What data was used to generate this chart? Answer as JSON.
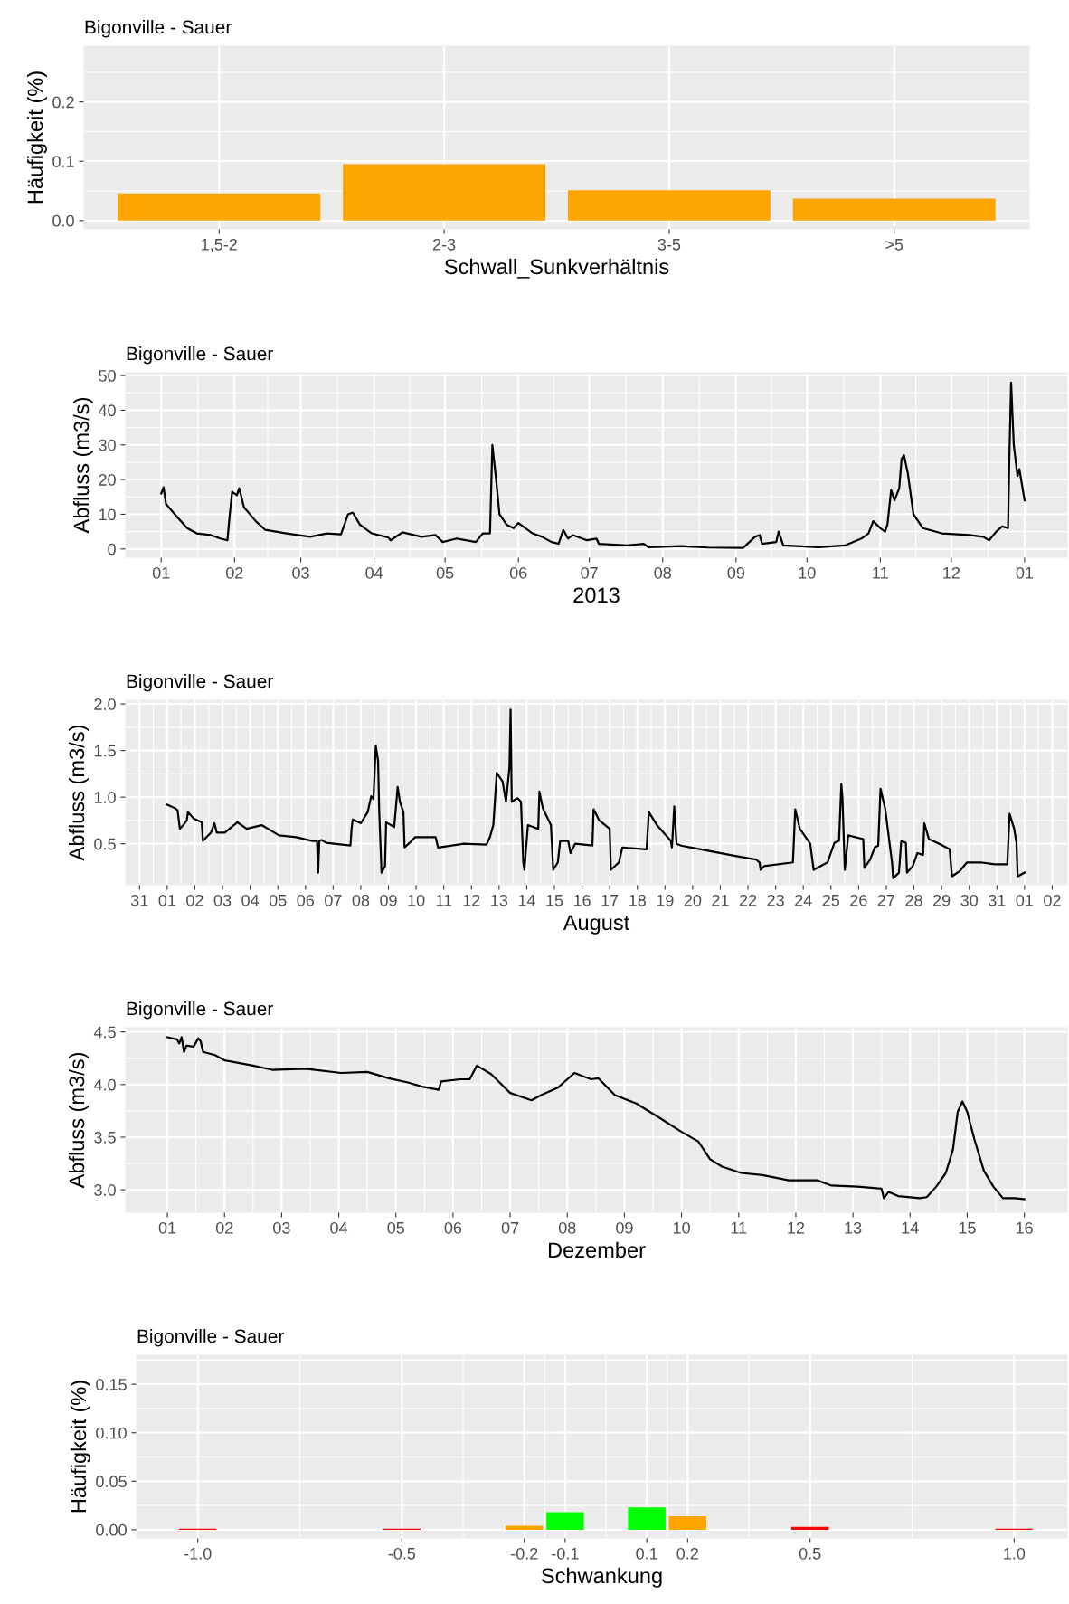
{
  "chart_data": [
    {
      "type": "bar",
      "title": "Bigonville - Sauer",
      "xlabel": "Schwall_Sunkverhältnis",
      "ylabel": "Häufigkeit (%)",
      "categories": [
        "1,5-2",
        "2-3",
        "3-5",
        ">5"
      ],
      "values": [
        0.046,
        0.095,
        0.051,
        0.037
      ],
      "color": "#ffa500",
      "ylim": [
        -0.014,
        0.294
      ],
      "yticks": [
        {
          "value": 0,
          "label": "0.0"
        },
        0.1,
        0.2
      ],
      "grid": true
    },
    {
      "type": "line",
      "title": "Bigonville - Sauer",
      "xlabel": "2013",
      "ylabel": "Abfluss (m3/s)",
      "color": "#000000",
      "x": [
        "2013-01-01",
        "2013-01-02",
        "2013-01-03",
        "2013-01-08",
        "2013-01-12",
        "2013-01-16",
        "2013-01-22",
        "2013-01-26",
        "2013-01-29",
        "2013-01-30",
        "2013-01-31",
        "2013-02-02",
        "2013-02-03",
        "2013-02-05",
        "2013-02-10",
        "2013-02-14",
        "2013-02-23",
        "2013-03-05",
        "2013-03-12",
        "2013-03-18",
        "2013-03-21",
        "2013-03-23",
        "2013-03-26",
        "2013-03-31",
        "2013-04-07",
        "2013-04-08",
        "2013-04-13",
        "2013-04-21",
        "2013-04-27",
        "2013-04-30",
        "2013-05-06",
        "2013-05-14",
        "2013-05-17",
        "2013-05-20",
        "2013-05-21",
        "2013-05-22T14:00",
        "2013-05-24",
        "2013-05-27",
        "2013-05-30",
        "2013-06-01",
        "2013-06-07",
        "2013-06-11",
        "2013-06-15",
        "2013-06-18",
        "2013-06-20",
        "2013-06-22",
        "2013-06-24",
        "2013-06-30",
        "2013-07-04",
        "2013-07-05",
        "2013-07-17",
        "2013-07-24",
        "2013-07-26",
        "2013-08-09",
        "2013-08-20",
        "2013-09-04",
        "2013-09-09",
        "2013-09-11",
        "2013-09-12",
        "2013-09-18",
        "2013-09-19",
        "2013-09-21",
        "2013-10-06",
        "2013-10-17",
        "2013-10-24",
        "2013-10-27",
        "2013-10-29",
        "2013-11-01",
        "2013-11-03",
        "2013-11-04",
        "2013-11-05T14:00",
        "2013-11-07",
        "2013-11-09",
        "2013-11-10",
        "2013-11-11",
        "2013-11-12T14:00",
        "2013-11-15",
        "2013-11-19",
        "2013-11-27",
        "2013-12-08T14:00",
        "2013-12-14T12:00",
        "2013-12-17",
        "2013-12-20",
        "2013-12-22T12:00",
        "2013-12-25",
        "2013-12-25T12:00",
        "2013-12-26T07:00",
        "2013-12-27T10:00",
        "2013-12-29",
        "2013-12-29T19:00",
        "2014-01-01"
      ],
      "values": [
        16,
        17.8,
        13,
        9,
        6,
        4.5,
        4,
        3,
        2.5,
        10,
        16.5,
        15.5,
        17.5,
        12,
        8,
        5.5,
        4.5,
        3.5,
        4.5,
        4.2,
        10,
        10.5,
        7,
        4.5,
        3.3,
        2.5,
        4.8,
        3.5,
        4,
        2,
        3,
        2,
        4.5,
        4.5,
        30,
        20,
        10,
        7,
        6,
        7.5,
        4.5,
        3.5,
        2,
        1.5,
        5.5,
        3,
        4,
        2.5,
        3,
        1.5,
        1.0,
        1.5,
        0.5,
        0.8,
        0.4,
        0.3,
        3.5,
        4,
        1.5,
        2,
        5,
        1,
        0.5,
        1,
        3,
        4.5,
        8,
        6,
        5,
        7,
        17,
        14,
        17.5,
        26,
        27,
        22,
        10,
        6,
        4.5,
        4,
        3.5,
        2.5,
        5,
        6.5,
        6,
        25,
        48,
        30,
        21,
        23,
        14
      ],
      "xlim": [
        "2012-12-17",
        "2014-01-19"
      ],
      "xticks": [
        {
          "value": "2013-01-01",
          "label": "01"
        },
        {
          "value": "2013-02-01",
          "label": "02"
        },
        {
          "value": "2013-03-01",
          "label": "03"
        },
        {
          "value": "2013-04-01",
          "label": "04"
        },
        {
          "value": "2013-05-01",
          "label": "05"
        },
        {
          "value": "2013-06-01",
          "label": "06"
        },
        {
          "value": "2013-07-01",
          "label": "07"
        },
        {
          "value": "2013-08-01",
          "label": "08"
        },
        {
          "value": "2013-09-01",
          "label": "09"
        },
        {
          "value": "2013-10-01",
          "label": "10"
        },
        {
          "value": "2013-11-01",
          "label": "11"
        },
        {
          "value": "2013-12-01",
          "label": "12"
        },
        {
          "value": "2014-01-01",
          "label": "01"
        }
      ],
      "ylim": [
        -2.4,
        50.8
      ],
      "yticks": [
        0,
        10,
        20,
        30,
        40,
        50
      ],
      "grid": true
    },
    {
      "type": "line",
      "title": "Bigonville - Sauer",
      "xlabel": "August",
      "ylabel": "Abfluss (m3/s)",
      "color": "#000000",
      "x": [
        "2013-08-01T00:00",
        "2013-08-01T07:00",
        "2013-08-01T09:00",
        "2013-08-01T11:00",
        "2013-08-01T14:00",
        "2013-08-01T17:00",
        "2013-08-01T18:00",
        "2013-08-01T23:00",
        "2013-08-02T06:00",
        "2013-08-02T07:00",
        "2013-08-02T14:00",
        "2013-08-02T17:00",
        "2013-08-02T19:00",
        "2013-08-03T02:00",
        "2013-08-03T13:00",
        "2013-08-03T21:00",
        "2013-08-04T10:00",
        "2013-08-05T01:00",
        "2013-08-05T16:00",
        "2013-08-06T06:00",
        "2013-08-06T10:00",
        "2013-08-06T11:00",
        "2013-08-06T12:00",
        "2013-08-06T14:00",
        "2013-08-06T18:00",
        "2013-08-07T15:00",
        "2013-08-07T16:00",
        "2013-08-07T17:00",
        "2013-08-08T00:00",
        "2013-08-08T06:00",
        "2013-08-08T09:00",
        "2013-08-08T11:00",
        "2013-08-08T13:00",
        "2013-08-08T15:00",
        "2013-08-08T16:00",
        "2013-08-08T18:00",
        "2013-08-08T21:00",
        "2013-08-08T22:00",
        "2013-08-09T05:00",
        "2013-08-09T08:00",
        "2013-08-09T10:00",
        "2013-08-09T13:00",
        "2013-08-09T14:00",
        "2013-08-09T20:00",
        "2013-08-09T23:00",
        "2013-08-10T17:00",
        "2013-08-10T19:00",
        "2013-08-11T17:00",
        "2013-08-12T13:00",
        "2013-08-12T16:00",
        "2013-08-12T19:00",
        "2013-08-12T22:00",
        "2013-08-13T03:00",
        "2013-08-13T06:00",
        "2013-08-13T09:00",
        "2013-08-13T10:00",
        "2013-08-13T11:00",
        "2013-08-13T16:00",
        "2013-08-13T19:00",
        "2013-08-13T21:00",
        "2013-08-13T22:00",
        "2013-08-14T01:00",
        "2013-08-14T10:00",
        "2013-08-14T11:00",
        "2013-08-14T14:00",
        "2013-08-14T21:00",
        "2013-08-14T23:00",
        "2013-08-15T03:00",
        "2013-08-15T05:00",
        "2013-08-15T12:00",
        "2013-08-15T14:00",
        "2013-08-15T18:00",
        "2013-08-16T09:00",
        "2013-08-16T10:00",
        "2013-08-16T15:00",
        "2013-08-17T00:00",
        "2013-08-17T01:00",
        "2013-08-17T08:00",
        "2013-08-17T11:00",
        "2013-08-18T08:00",
        "2013-08-18T10:00",
        "2013-08-18T17:00",
        "2013-08-19T05:00",
        "2013-08-19T06:00",
        "2013-08-19T08:00",
        "2013-08-19T10:00",
        "2013-08-19T14:00",
        "2013-08-20T07:00",
        "2013-08-21T13:00",
        "2013-08-22T07:00",
        "2013-08-22T10:00",
        "2013-08-22T11:00",
        "2013-08-22T14:00",
        "2013-08-23T15:00",
        "2013-08-23T17:00",
        "2013-08-23T21:00",
        "2013-08-24T06:00",
        "2013-08-24T09:00",
        "2013-08-24T21:00",
        "2013-08-25T03:00",
        "2013-08-25T07:00",
        "2013-08-25T09:00",
        "2013-08-25T10:00",
        "2013-08-25T12:00",
        "2013-08-25T15:00",
        "2013-08-26T04:00",
        "2013-08-26T05:00",
        "2013-08-26T10:00",
        "2013-08-26T14:00",
        "2013-08-26T17:00",
        "2013-08-26T19:00",
        "2013-08-26T23:00",
        "2013-08-27T05:00",
        "2013-08-27T06:00",
        "2013-08-27T11:00",
        "2013-08-27T13:00",
        "2013-08-27T17:00",
        "2013-08-27T18:00",
        "2013-08-27T23:00",
        "2013-08-28T03:00",
        "2013-08-28T08:00",
        "2013-08-28T09:00",
        "2013-08-28T13:00",
        "2013-08-28T22:00",
        "2013-08-29T07:00",
        "2013-08-29T09:00",
        "2013-08-29T16:00",
        "2013-08-29T22:00",
        "2013-08-30T10:00",
        "2013-08-30T22:00",
        "2013-08-31T09:00",
        "2013-08-31T11:00",
        "2013-08-31T15:00",
        "2013-08-31T17:00",
        "2013-08-31T18:00",
        "2013-09-01T00:00"
      ],
      "values": [
        0.92,
        0.88,
        0.86,
        0.66,
        0.7,
        0.75,
        0.84,
        0.77,
        0.73,
        0.53,
        0.62,
        0.72,
        0.62,
        0.62,
        0.73,
        0.66,
        0.7,
        0.59,
        0.57,
        0.53,
        0.53,
        0.19,
        0.53,
        0.54,
        0.51,
        0.48,
        0.66,
        0.76,
        0.72,
        0.84,
        1.01,
        0.98,
        1.55,
        1.39,
        0.84,
        0.19,
        0.26,
        0.73,
        0.68,
        1.11,
        0.95,
        0.84,
        0.46,
        0.53,
        0.57,
        0.57,
        0.46,
        0.5,
        0.49,
        0.57,
        0.7,
        1.26,
        1.17,
        0.95,
        1.32,
        1.94,
        0.95,
        0.99,
        0.95,
        0.3,
        0.22,
        0.7,
        0.66,
        1.06,
        0.88,
        0.7,
        0.22,
        0.3,
        0.53,
        0.53,
        0.4,
        0.5,
        0.48,
        0.87,
        0.75,
        0.66,
        0.22,
        0.3,
        0.46,
        0.44,
        0.84,
        0.7,
        0.53,
        0.46,
        0.9,
        0.5,
        0.48,
        0.44,
        0.37,
        0.33,
        0.3,
        0.22,
        0.26,
        0.3,
        0.87,
        0.66,
        0.5,
        0.22,
        0.3,
        0.51,
        0.53,
        1.14,
        0.99,
        0.22,
        0.59,
        0.55,
        0.24,
        0.33,
        0.46,
        0.48,
        1.09,
        0.88,
        0.3,
        0.13,
        0.19,
        0.53,
        0.51,
        0.19,
        0.26,
        0.4,
        0.38,
        0.72,
        0.55,
        0.5,
        0.44,
        0.15,
        0.21,
        0.3,
        0.3,
        0.28,
        0.28,
        0.82,
        0.66,
        0.51,
        0.15,
        0.19
      ],
      "xlim": [
        "2013-07-30T12:00",
        "2013-09-02T13:00"
      ],
      "xticks": [
        {
          "value": "2013-07-31",
          "label": "31"
        },
        {
          "value": "2013-08-01",
          "label": "01"
        },
        {
          "value": "2013-08-02",
          "label": "02"
        },
        {
          "value": "2013-08-03",
          "label": "03"
        },
        {
          "value": "2013-08-04",
          "label": "04"
        },
        {
          "value": "2013-08-05",
          "label": "05"
        },
        {
          "value": "2013-08-06",
          "label": "06"
        },
        {
          "value": "2013-08-07",
          "label": "07"
        },
        {
          "value": "2013-08-08",
          "label": "08"
        },
        {
          "value": "2013-08-09",
          "label": "09"
        },
        {
          "value": "2013-08-10",
          "label": "10"
        },
        {
          "value": "2013-08-11",
          "label": "11"
        },
        {
          "value": "2013-08-12",
          "label": "12"
        },
        {
          "value": "2013-08-13",
          "label": "13"
        },
        {
          "value": "2013-08-14",
          "label": "14"
        },
        {
          "value": "2013-08-15",
          "label": "15"
        },
        {
          "value": "2013-08-16",
          "label": "16"
        },
        {
          "value": "2013-08-17",
          "label": "17"
        },
        {
          "value": "2013-08-18",
          "label": "18"
        },
        {
          "value": "2013-08-19",
          "label": "19"
        },
        {
          "value": "2013-08-20",
          "label": "20"
        },
        {
          "value": "2013-08-21",
          "label": "21"
        },
        {
          "value": "2013-08-22",
          "label": "22"
        },
        {
          "value": "2013-08-23",
          "label": "23"
        },
        {
          "value": "2013-08-24",
          "label": "24"
        },
        {
          "value": "2013-08-25",
          "label": "25"
        },
        {
          "value": "2013-08-26",
          "label": "26"
        },
        {
          "value": "2013-08-27",
          "label": "27"
        },
        {
          "value": "2013-08-28",
          "label": "28"
        },
        {
          "value": "2013-08-29",
          "label": "29"
        },
        {
          "value": "2013-08-30",
          "label": "30"
        },
        {
          "value": "2013-08-31",
          "label": "31"
        },
        {
          "value": "2013-09-01",
          "label": "01"
        },
        {
          "value": "2013-09-02",
          "label": "02"
        }
      ],
      "ylim": [
        0.06,
        2.04
      ],
      "yticks": [
        0.5,
        {
          "value": 1,
          "label": "1.0"
        },
        1.5,
        {
          "value": 2,
          "label": "2.0"
        }
      ],
      "grid": true
    },
    {
      "type": "line",
      "title": "Bigonville - Sauer",
      "xlabel": "Dezember",
      "ylabel": "Abfluss (m3/s)",
      "color": "#000000",
      "x": [
        "2013-12-01T00:00",
        "2013-12-01T04:00",
        "2013-12-01T05:00",
        "2013-12-01T06:00",
        "2013-12-01T07:00",
        "2013-12-01T08:00",
        "2013-12-01T11:00",
        "2013-12-01T13:00",
        "2013-12-01T14:00",
        "2013-12-01T15:00",
        "2013-12-01T20:00",
        "2013-12-02T00:00",
        "2013-12-02T12:00",
        "2013-12-02T20:00",
        "2013-12-03T10:00",
        "2013-12-04T01:00",
        "2013-12-04T12:00",
        "2013-12-04T21:00",
        "2013-12-05T05:00",
        "2013-12-05T11:00",
        "2013-12-05T18:00",
        "2013-12-05T19:00",
        "2013-12-06T03:00",
        "2013-12-06T07:00",
        "2013-12-06T10:00",
        "2013-12-06T16:00",
        "2013-12-07T00:00",
        "2013-12-07T09:00",
        "2013-12-07T13:00",
        "2013-12-07T20:00",
        "2013-12-08T03:00",
        "2013-12-08T10:00",
        "2013-12-08T13:00",
        "2013-12-08T20:00",
        "2013-12-09T05:00",
        "2013-12-09T15:00",
        "2013-12-10T00:00",
        "2013-12-10T07:00",
        "2013-12-10T12:00",
        "2013-12-10T17:00",
        "2013-12-11T01:00",
        "2013-12-11T10:00",
        "2013-12-11T21:00",
        "2013-12-12T09:00",
        "2013-12-12T15:00",
        "2013-12-13T02:00",
        "2013-12-13T12:00",
        "2013-12-13T13:00",
        "2013-12-13T15:00",
        "2013-12-13T19:00",
        "2013-12-14T04:00",
        "2013-12-14T07:00",
        "2013-12-14T11:00",
        "2013-12-14T15:00",
        "2013-12-14T18:00",
        "2013-12-14T20:00",
        "2013-12-14T22:00",
        "2013-12-15T00:00",
        "2013-12-15T03:00",
        "2013-12-15T07:00",
        "2013-12-15T11:00",
        "2013-12-15T15:00",
        "2013-12-15T20:00",
        "2013-12-16T00:00"
      ],
      "values": [
        4.45,
        4.43,
        4.39,
        4.45,
        4.31,
        4.37,
        4.36,
        4.44,
        4.41,
        4.31,
        4.28,
        4.23,
        4.18,
        4.14,
        4.15,
        4.11,
        4.12,
        4.06,
        4.02,
        3.98,
        3.95,
        4.03,
        4.05,
        4.05,
        4.18,
        4.1,
        3.92,
        3.85,
        3.9,
        3.97,
        4.11,
        4.05,
        4.06,
        3.9,
        3.82,
        3.68,
        3.55,
        3.46,
        3.29,
        3.22,
        3.16,
        3.14,
        3.09,
        3.09,
        3.04,
        3.03,
        3.01,
        2.92,
        2.98,
        2.94,
        2.92,
        2.93,
        3.03,
        3.16,
        3.38,
        3.74,
        3.84,
        3.74,
        3.48,
        3.18,
        3.03,
        2.92,
        2.92,
        2.91
      ],
      "xlim": [
        "2013-11-30T06:30",
        "2013-12-16T18:00"
      ],
      "xticks": [
        {
          "value": "2013-12-01",
          "label": "01"
        },
        {
          "value": "2013-12-02",
          "label": "02"
        },
        {
          "value": "2013-12-03",
          "label": "03"
        },
        {
          "value": "2013-12-04",
          "label": "04"
        },
        {
          "value": "2013-12-05",
          "label": "05"
        },
        {
          "value": "2013-12-06",
          "label": "06"
        },
        {
          "value": "2013-12-07",
          "label": "07"
        },
        {
          "value": "2013-12-08",
          "label": "08"
        },
        {
          "value": "2013-12-09",
          "label": "09"
        },
        {
          "value": "2013-12-10",
          "label": "10"
        },
        {
          "value": "2013-12-11",
          "label": "11"
        },
        {
          "value": "2013-12-12",
          "label": "12"
        },
        {
          "value": "2013-12-13",
          "label": "13"
        },
        {
          "value": "2013-12-14",
          "label": "14"
        },
        {
          "value": "2013-12-15",
          "label": "15"
        },
        {
          "value": "2013-12-16",
          "label": "16"
        }
      ],
      "ylim": [
        2.786,
        4.54
      ],
      "yticks": [
        {
          "value": 3,
          "label": "3.0"
        },
        3.5,
        {
          "value": 4,
          "label": "4.0"
        },
        4.5
      ],
      "grid": true
    },
    {
      "type": "bar",
      "title": "Bigonville - Sauer",
      "xlabel": "Schwankung",
      "ylabel": "Häufigkeit (%)",
      "x": [
        -1.0,
        -0.5,
        -0.2,
        -0.1,
        0.1,
        0.2,
        0.5,
        1.0
      ],
      "values": [
        0.001,
        0.001,
        0.004,
        0.018,
        0.023,
        0.014,
        0.003,
        0.001
      ],
      "colors": [
        "#ff0000",
        "#ff0000",
        "#ffa500",
        "#00ff00",
        "#00ff00",
        "#ffa500",
        "#ff0000",
        "#ff0000"
      ],
      "xlim": [
        -1.15,
        1.13
      ],
      "xticks": [
        {
          "value": -1,
          "label": "-1.0"
        },
        -0.5,
        -0.2,
        -0.1,
        0.1,
        0.2,
        0.5,
        {
          "value": 1,
          "label": "1.0"
        }
      ],
      "ylim": [
        -0.0085,
        0.18
      ],
      "yticks": [
        {
          "value": 0,
          "label": "0.00"
        },
        {
          "value": 0.05,
          "label": "0.05"
        },
        {
          "value": 0.1,
          "label": "0.10"
        },
        {
          "value": 0.15,
          "label": "0.15"
        }
      ],
      "grid": true
    }
  ]
}
